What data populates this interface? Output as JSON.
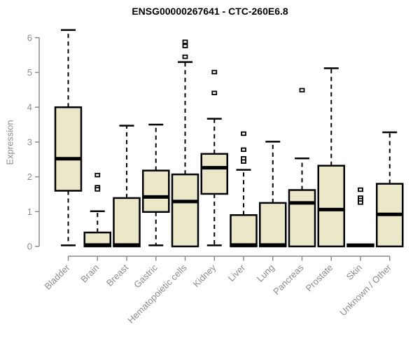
{
  "chart_data": {
    "type": "boxplot",
    "title": "ENSG00000267641 - CTC-260E6.8",
    "ylabel": "Expression",
    "xlabel": "",
    "ylim": [
      0,
      6.45
    ],
    "yticks": [
      0,
      1,
      2,
      3,
      4,
      5,
      6
    ],
    "grid": false,
    "legend": null,
    "categories": [
      "Bladder",
      "Brain",
      "Breast",
      "Gastric",
      "Hematopoietic cells",
      "Kidney",
      "Liver",
      "Lung",
      "Pancreas",
      "Prostate",
      "Skin",
      "Unknown / Other"
    ],
    "series": [
      {
        "category": "Bladder",
        "whisker_low": 0.03,
        "q1": 1.6,
        "median": 2.52,
        "q3": 4.0,
        "whisker_high": 6.22,
        "outliers": []
      },
      {
        "category": "Brain",
        "whisker_low": null,
        "q1": 0.0,
        "median": 0.04,
        "q3": 0.4,
        "whisker_high": 1.01,
        "outliers": [
          2.05,
          1.7,
          1.64
        ]
      },
      {
        "category": "Breast",
        "whisker_low": null,
        "q1": 0.0,
        "median": 0.04,
        "q3": 1.39,
        "whisker_high": 3.47,
        "outliers": []
      },
      {
        "category": "Gastric",
        "whisker_low": 0.03,
        "q1": 0.99,
        "median": 1.42,
        "q3": 2.18,
        "whisker_high": 3.5,
        "outliers": []
      },
      {
        "category": "Hematopoietic cells",
        "whisker_low": null,
        "q1": 0.0,
        "median": 1.29,
        "q3": 2.07,
        "whisker_high": 5.3,
        "outliers": [
          5.88,
          5.76,
          5.45
        ]
      },
      {
        "category": "Kidney",
        "whisker_low": 0.03,
        "q1": 1.51,
        "median": 2.26,
        "q3": 2.66,
        "whisker_high": 3.67,
        "outliers": [
          5.01,
          4.41
        ]
      },
      {
        "category": "Liver",
        "whisker_low": null,
        "q1": 0.0,
        "median": 0.04,
        "q3": 0.9,
        "whisker_high": 2.2,
        "outliers": [
          3.24,
          2.78,
          2.53,
          2.44
        ]
      },
      {
        "category": "Lung",
        "whisker_low": null,
        "q1": 0.0,
        "median": 0.04,
        "q3": 1.25,
        "whisker_high": 3.01,
        "outliers": []
      },
      {
        "category": "Pancreas",
        "whisker_low": null,
        "q1": 0.0,
        "median": 1.25,
        "q3": 1.62,
        "whisker_high": 2.53,
        "outliers": [
          4.49
        ]
      },
      {
        "category": "Prostate",
        "whisker_low": null,
        "q1": 0.0,
        "median": 1.06,
        "q3": 2.32,
        "whisker_high": 5.12,
        "outliers": []
      },
      {
        "category": "Skin",
        "whisker_low": null,
        "q1": 0.0,
        "median": 0.03,
        "q3": 0.06,
        "whisker_high": null,
        "outliers": [
          1.63,
          1.4,
          1.33,
          1.26
        ]
      },
      {
        "category": "Unknown / Other",
        "whisker_low": null,
        "q1": 0.0,
        "median": 0.92,
        "q3": 1.8,
        "whisker_high": 3.28,
        "outliers": []
      }
    ],
    "colors": {
      "box_fill": "#EBE7C9",
      "box_stroke": "#000000",
      "median": "#000000",
      "whisker": "#000000",
      "axis": "#8c8c8c",
      "tick_label": "#8c8c8c",
      "title": "#000000",
      "background": "#ffffff"
    }
  }
}
